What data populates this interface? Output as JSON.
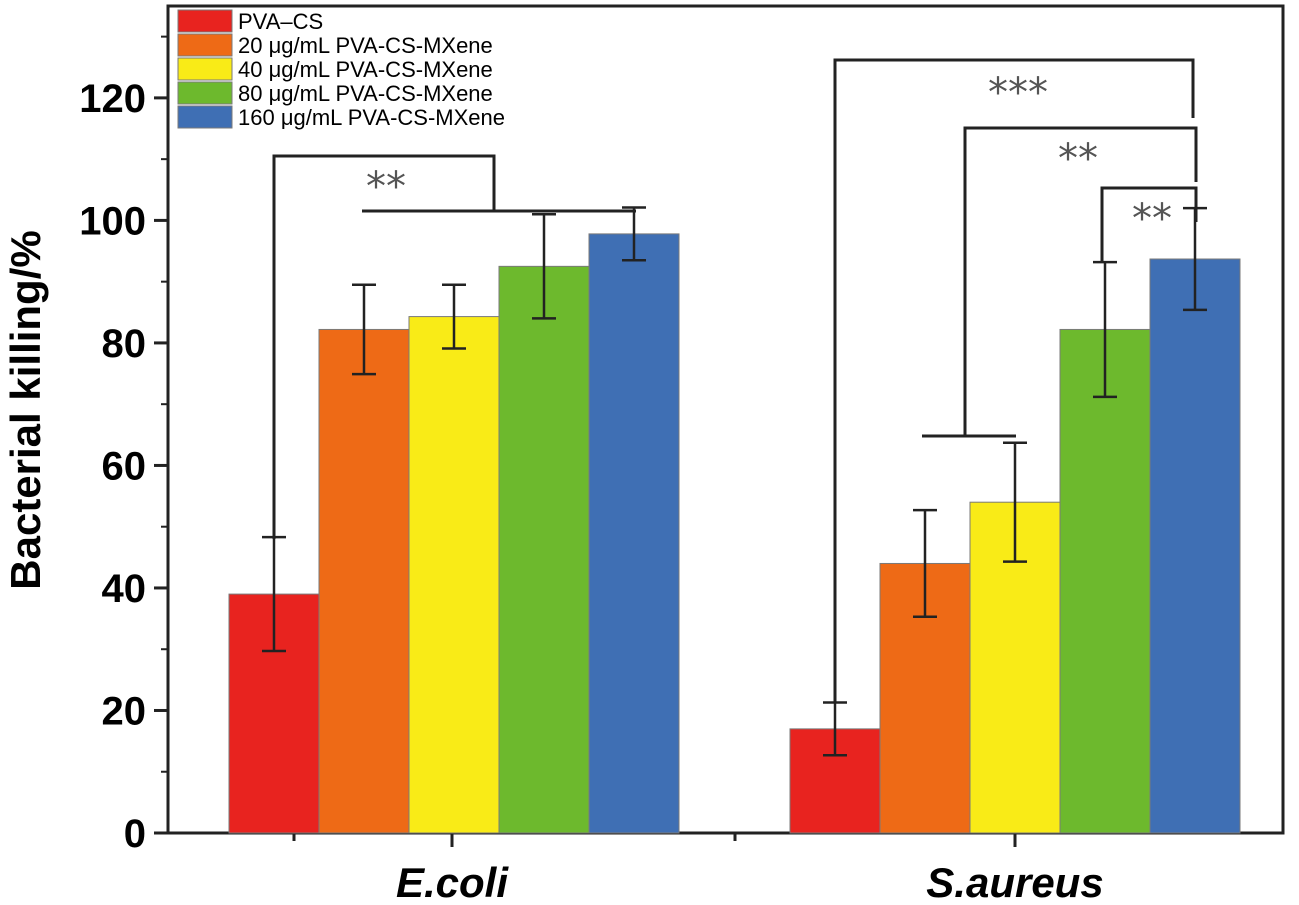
{
  "chart_data": {
    "type": "bar",
    "title": "",
    "xlabel": "",
    "ylabel": "Bacterial killing/%",
    "ylim": [
      0,
      135
    ],
    "yticks": [
      0,
      20,
      40,
      60,
      80,
      100,
      120
    ],
    "categories": [
      "E.coli",
      "S.aureus"
    ],
    "series": [
      {
        "name": "PVA–CS",
        "color": "#e8231f",
        "values": [
          39,
          17
        ],
        "errors": [
          9.3,
          4.3
        ]
      },
      {
        "name": "20 μg/mL  PVA-CS-MXene",
        "color": "#ee6a16",
        "values": [
          82.2,
          44
        ],
        "errors": [
          7.3,
          8.7
        ]
      },
      {
        "name": "40 μg/mL  PVA-CS-MXene",
        "color": "#f9eb17",
        "values": [
          84.3,
          54
        ],
        "errors": [
          5.2,
          9.7
        ]
      },
      {
        "name": "80 μg/mL  PVA-CS-MXene",
        "color": "#6db92d",
        "values": [
          92.5,
          82.2
        ],
        "errors": [
          8.5,
          11
        ]
      },
      {
        "name": "160 μg/mL  PVA-CS-MXene",
        "color": "#3f6fb4",
        "values": [
          97.8,
          93.7
        ],
        "errors": [
          4.3,
          8.3
        ]
      }
    ],
    "legend": "top-left",
    "annotations": [
      {
        "text": "**",
        "group": "E.coli",
        "compare": "PVA–CS vs others"
      },
      {
        "text": "***",
        "group": "S.aureus",
        "compare": "PVA–CS vs 160 μg/mL"
      },
      {
        "text": "**",
        "group": "S.aureus",
        "compare": "20/40 μg/mL vs 160 μg/mL"
      },
      {
        "text": "**",
        "group": "S.aureus",
        "compare": "80 μg/mL vs 160 μg/mL"
      }
    ]
  }
}
